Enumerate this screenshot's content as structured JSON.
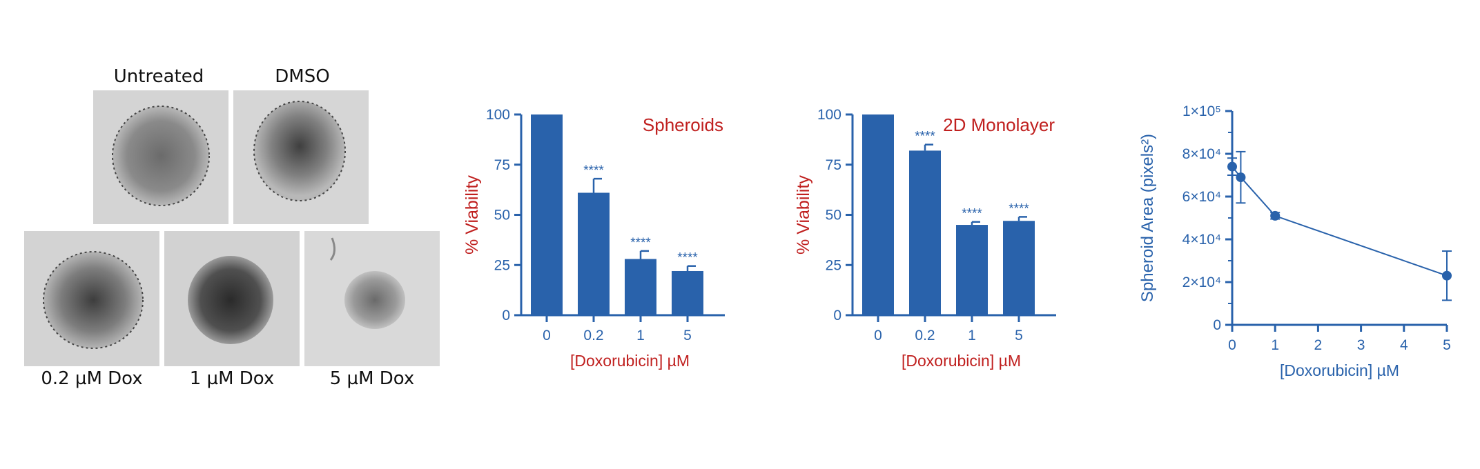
{
  "images": {
    "top_labels": [
      "Untreated",
      "DMSO"
    ],
    "bottom_labels": [
      "0.2 µM Dox",
      "1 µM Dox",
      "5 µM Dox"
    ]
  },
  "colors": {
    "blue": "#2962ab",
    "red": "#c0201f"
  },
  "chart_data": [
    {
      "type": "bar",
      "title": "Spheroids",
      "xlabel": "[Doxorubicin] µM",
      "ylabel": "% Viability",
      "categories": [
        "0",
        "0.2",
        "1",
        "5"
      ],
      "values": [
        100,
        61,
        28,
        22
      ],
      "errors": [
        0,
        7,
        4,
        2.5
      ],
      "annotations": [
        "",
        "****",
        "****",
        "****"
      ],
      "ylim": [
        0,
        100
      ],
      "yticks": [
        "0",
        "25",
        "50",
        "75",
        "100"
      ]
    },
    {
      "type": "bar",
      "title": "2D Monolayer",
      "xlabel": "[Doxorubicin] µM",
      "ylabel": "% Viability",
      "categories": [
        "0",
        "0.2",
        "1",
        "5"
      ],
      "values": [
        100,
        82,
        45,
        47
      ],
      "errors": [
        0,
        3,
        1.5,
        2
      ],
      "annotations": [
        "",
        "****",
        "****",
        "****"
      ],
      "ylim": [
        0,
        100
      ],
      "yticks": [
        "0",
        "25",
        "50",
        "75",
        "100"
      ]
    },
    {
      "type": "line",
      "title": "",
      "xlabel": "[Doxorubicin] µM",
      "ylabel": "Spheroid Area (pixels²)",
      "x": [
        0,
        0.2,
        1,
        5
      ],
      "y": [
        74000,
        69000,
        51000,
        23000
      ],
      "errors": [
        4000,
        12000,
        1500,
        11500
      ],
      "xlim": [
        0,
        5
      ],
      "ylim": [
        0,
        100000
      ],
      "xticks": [
        "0",
        "1",
        "2",
        "3",
        "4",
        "5"
      ],
      "yticks": [
        "0",
        "2×10⁴",
        "4×10⁴",
        "6×10⁴",
        "8×10⁴",
        "1×10⁵"
      ]
    }
  ]
}
